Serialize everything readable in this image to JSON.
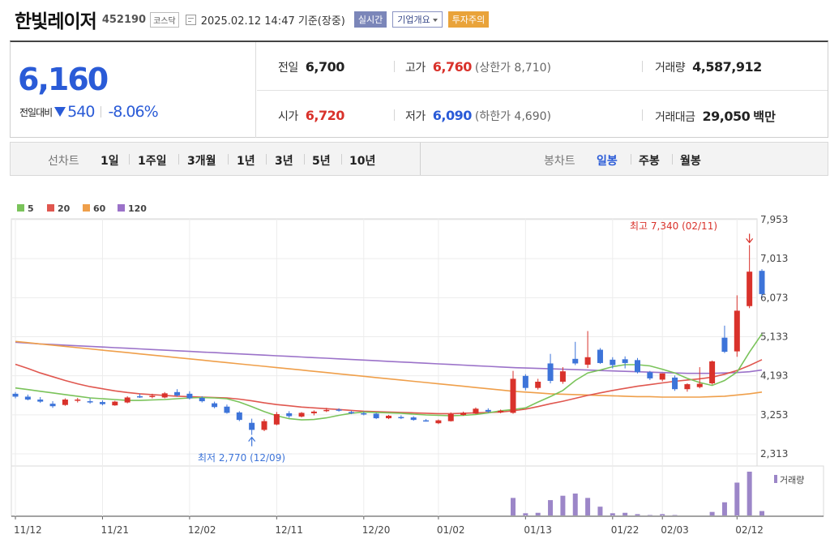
{
  "header": {
    "name": "한빛레이저",
    "code": "452190",
    "market": "코스닥",
    "datetime": "2025.02.12 14:47 기준(장중)",
    "realtime": "실시간",
    "company_info": "기업개요",
    "warning": "투자주의"
  },
  "quote": {
    "price": "6,160",
    "change_label": "전일대비",
    "change_amount": "540",
    "change_percent": "-8.06%",
    "prev_label": "전일",
    "prev_value": "6,700",
    "high_label": "고가",
    "high_value": "6,760",
    "upper_limit": "(상한가 8,710)",
    "volume_label": "거래량",
    "volume_value": "4,587,912",
    "open_label": "시가",
    "open_value": "6,720",
    "low_label": "저가",
    "low_value": "6,090",
    "lower_limit": "(하한가 4,690)",
    "amount_label": "거래대금",
    "amount_value": "29,050",
    "amount_unit": "백만"
  },
  "periods": {
    "line_label": "선차트",
    "line_options": [
      "1일",
      "1주일",
      "3개월",
      "1년",
      "3년",
      "5년",
      "10년"
    ],
    "candle_label": "봉차트",
    "candle_options": [
      "일봉",
      "주봉",
      "월봉"
    ],
    "selected_candle": "일봉"
  },
  "colors": {
    "up": "#d9322b",
    "down": "#3d74d9",
    "ma5": "#7ac35a",
    "ma20": "#e0574f",
    "ma60": "#ef9f4a",
    "ma120": "#9b72c9",
    "volume": "#9c86c8"
  },
  "chart_data": {
    "type": "candlestick",
    "legend": [
      "5",
      "20",
      "60",
      "120"
    ],
    "y_ticks": [
      "7,953",
      "7,013",
      "6,073",
      "5,133",
      "4,193",
      "3,253",
      "2,313"
    ],
    "y_tick_values": [
      7953,
      7013,
      6073,
      5133,
      4193,
      3253,
      2313
    ],
    "ylim": [
      2313,
      7953
    ],
    "x_labels": [
      "11/12",
      "11/21",
      "12/02",
      "12/11",
      "12/20",
      "01/02",
      "01/13",
      "01/22",
      "02/03",
      "02/12"
    ],
    "x_label_index": [
      0,
      7,
      14,
      21,
      28,
      34,
      41,
      48,
      52,
      58
    ],
    "candles": [
      [
        3760,
        3800,
        3650,
        3690
      ],
      [
        3690,
        3740,
        3600,
        3620
      ],
      [
        3620,
        3680,
        3540,
        3570
      ],
      [
        3520,
        3580,
        3420,
        3460
      ],
      [
        3490,
        3650,
        3470,
        3620
      ],
      [
        3600,
        3660,
        3550,
        3620
      ],
      [
        3580,
        3650,
        3520,
        3570
      ],
      [
        3560,
        3600,
        3480,
        3510
      ],
      [
        3480,
        3590,
        3470,
        3570
      ],
      [
        3550,
        3700,
        3530,
        3670
      ],
      [
        3700,
        3760,
        3660,
        3680
      ],
      [
        3700,
        3760,
        3650,
        3710
      ],
      [
        3670,
        3800,
        3650,
        3770
      ],
      [
        3800,
        3870,
        3690,
        3720
      ],
      [
        3760,
        3820,
        3620,
        3650
      ],
      [
        3660,
        3700,
        3550,
        3580
      ],
      [
        3530,
        3570,
        3410,
        3440
      ],
      [
        3450,
        3500,
        3280,
        3300
      ],
      [
        3310,
        3340,
        3100,
        3130
      ],
      [
        3060,
        3160,
        2770,
        2890
      ],
      [
        2890,
        3150,
        2860,
        3100
      ],
      [
        3020,
        3320,
        3000,
        3270
      ],
      [
        3290,
        3340,
        3180,
        3220
      ],
      [
        3210,
        3320,
        3190,
        3300
      ],
      [
        3290,
        3360,
        3240,
        3330
      ],
      [
        3350,
        3420,
        3320,
        3370
      ],
      [
        3380,
        3410,
        3330,
        3360
      ],
      [
        3320,
        3350,
        3270,
        3290
      ],
      [
        3290,
        3330,
        3240,
        3270
      ],
      [
        3280,
        3300,
        3150,
        3170
      ],
      [
        3170,
        3250,
        3150,
        3230
      ],
      [
        3200,
        3240,
        3150,
        3170
      ],
      [
        3190,
        3220,
        3110,
        3130
      ],
      [
        3120,
        3150,
        3090,
        3110
      ],
      [
        3050,
        3140,
        3030,
        3120
      ],
      [
        3100,
        3310,
        3090,
        3270
      ],
      [
        3250,
        3330,
        3230,
        3300
      ],
      [
        3280,
        3430,
        3270,
        3400
      ],
      [
        3370,
        3410,
        3300,
        3330
      ],
      [
        3310,
        3380,
        3290,
        3350
      ],
      [
        3300,
        4310,
        3280,
        4120
      ],
      [
        4190,
        4230,
        3840,
        3900
      ],
      [
        3900,
        4120,
        3860,
        4050
      ],
      [
        4490,
        4720,
        4010,
        4070
      ],
      [
        4050,
        4400,
        4000,
        4300
      ],
      [
        4600,
        5010,
        4450,
        4490
      ],
      [
        4460,
        5270,
        4380,
        4640
      ],
      [
        4820,
        4860,
        4480,
        4500
      ],
      [
        4580,
        4640,
        4370,
        4450
      ],
      [
        4590,
        4660,
        4370,
        4500
      ],
      [
        4570,
        4620,
        4250,
        4280
      ],
      [
        4280,
        4310,
        4090,
        4130
      ],
      [
        4100,
        4250,
        4060,
        4250
      ],
      [
        4150,
        4200,
        3830,
        3870
      ],
      [
        3870,
        4010,
        3810,
        3990
      ],
      [
        3920,
        4400,
        3890,
        4000
      ],
      [
        4010,
        4560,
        3980,
        4540
      ],
      [
        5110,
        5400,
        4740,
        4770
      ],
      [
        4780,
        6130,
        4650,
        5760
      ],
      [
        5870,
        7340,
        5820,
        6700
      ],
      [
        6720,
        6760,
        6090,
        6160
      ]
    ],
    "ma5": [
      3900,
      3860,
      3820,
      3780,
      3740,
      3700,
      3660,
      3640,
      3620,
      3600,
      3600,
      3610,
      3620,
      3640,
      3660,
      3670,
      3660,
      3640,
      3560,
      3450,
      3330,
      3230,
      3160,
      3130,
      3140,
      3180,
      3240,
      3290,
      3320,
      3310,
      3300,
      3290,
      3270,
      3250,
      3240,
      3230,
      3240,
      3260,
      3300,
      3350,
      3380,
      3420,
      3560,
      3690,
      3840,
      4080,
      4260,
      4330,
      4410,
      4460,
      4460,
      4430,
      4350,
      4260,
      4130,
      4030,
      3960,
      4080,
      4280,
      4760,
      5200
    ],
    "ma20": [
      4470,
      4370,
      4260,
      4170,
      4080,
      4000,
      3930,
      3880,
      3830,
      3790,
      3760,
      3740,
      3720,
      3700,
      3690,
      3680,
      3670,
      3660,
      3630,
      3590,
      3540,
      3500,
      3470,
      3440,
      3420,
      3400,
      3380,
      3360,
      3340,
      3330,
      3320,
      3310,
      3300,
      3290,
      3280,
      3280,
      3290,
      3300,
      3310,
      3320,
      3350,
      3390,
      3450,
      3520,
      3580,
      3650,
      3720,
      3780,
      3840,
      3890,
      3940,
      3980,
      4020,
      4060,
      4090,
      4120,
      4160,
      4230,
      4320,
      4440,
      4580
    ],
    "ma60": [
      5020,
      4990,
      4960,
      4930,
      4900,
      4870,
      4840,
      4810,
      4780,
      4750,
      4720,
      4690,
      4660,
      4630,
      4600,
      4570,
      4540,
      4510,
      4480,
      4450,
      4420,
      4390,
      4360,
      4330,
      4300,
      4270,
      4240,
      4210,
      4180,
      4150,
      4120,
      4090,
      4060,
      4030,
      4000,
      3970,
      3940,
      3910,
      3880,
      3850,
      3820,
      3800,
      3780,
      3760,
      3750,
      3740,
      3730,
      3720,
      3710,
      3700,
      3690,
      3690,
      3680,
      3680,
      3680,
      3680,
      3690,
      3700,
      3730,
      3760,
      3800
    ],
    "ma120": [
      5000,
      4980,
      4960,
      4945,
      4930,
      4915,
      4900,
      4885,
      4870,
      4855,
      4840,
      4825,
      4810,
      4795,
      4780,
      4765,
      4750,
      4735,
      4720,
      4705,
      4690,
      4675,
      4660,
      4645,
      4630,
      4615,
      4600,
      4585,
      4570,
      4555,
      4540,
      4525,
      4510,
      4495,
      4480,
      4465,
      4450,
      4435,
      4420,
      4405,
      4390,
      4380,
      4370,
      4360,
      4350,
      4340,
      4330,
      4320,
      4310,
      4300,
      4290,
      4280,
      4270,
      4260,
      4250,
      4250,
      4250,
      4260,
      4270,
      4290,
      4330
    ],
    "volume": [
      0,
      0,
      0,
      0,
      0,
      0,
      0,
      0,
      0,
      0,
      0,
      0,
      0,
      0,
      0,
      0,
      0,
      0,
      0,
      0,
      0,
      0,
      0,
      0,
      0,
      0,
      0,
      0,
      0,
      0,
      0,
      0,
      0,
      0,
      0,
      0,
      0,
      0,
      0,
      0,
      40,
      5,
      6,
      35,
      45,
      50,
      40,
      20,
      5,
      6,
      3,
      1,
      3,
      1,
      0,
      0,
      8,
      30,
      75,
      100,
      10
    ],
    "annotations": {
      "high_text": "최고 7,340 (02/11)",
      "low_text": "최저 2,770 (12/09)",
      "volume_label": "거래량"
    }
  }
}
